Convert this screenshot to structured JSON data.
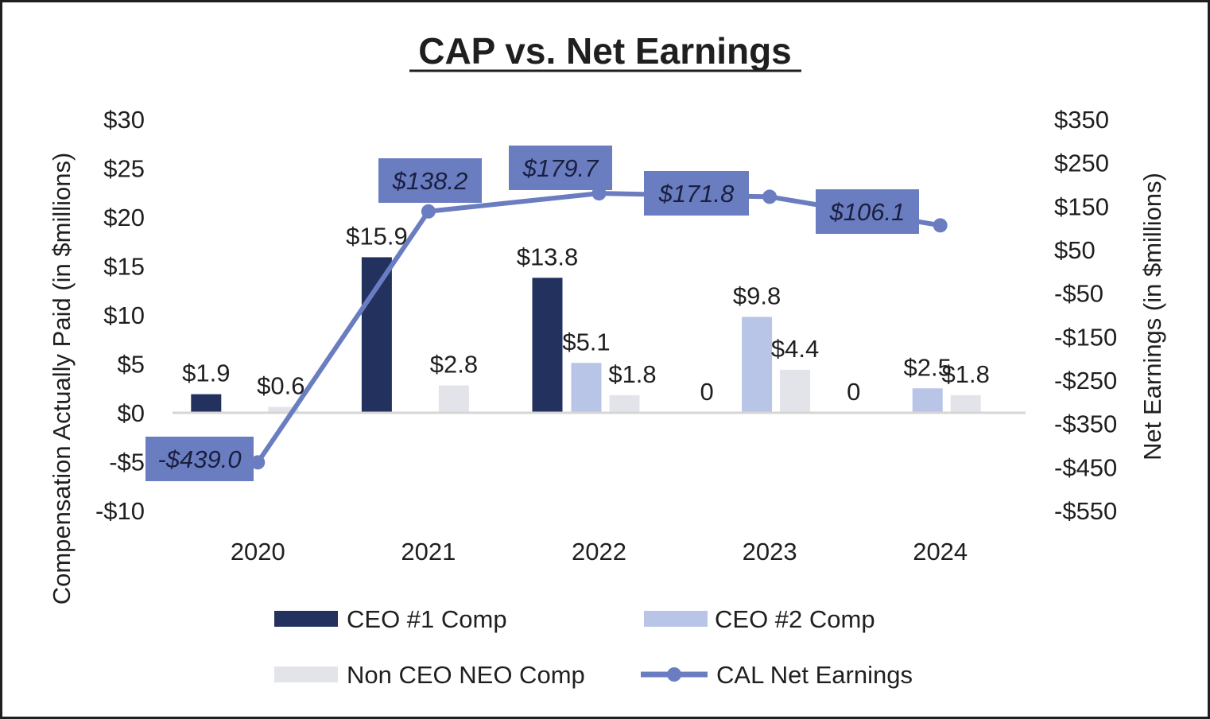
{
  "chart_data": {
    "type": "bar",
    "title": "CAP vs. Net Earnings",
    "categories": [
      "2020",
      "2021",
      "2022",
      "2023",
      "2024"
    ],
    "ylabel": "Compensation Actually Paid (in $millions)",
    "ylabel_right": "Net Earnings (in $millions)",
    "ylim": [
      -10,
      30
    ],
    "yticks": [
      30,
      25,
      20,
      15,
      10,
      5,
      0,
      -5,
      -10
    ],
    "ytick_labels": [
      "$30",
      "$25",
      "$20",
      "$15",
      "$10",
      "$5",
      "$0",
      "-$5",
      "-$10"
    ],
    "ylim_right": [
      -550,
      350
    ],
    "yticks_right": [
      350,
      250,
      150,
      50,
      -50,
      -150,
      -250,
      -350,
      -450,
      -550
    ],
    "ytick_labels_right": [
      "$350",
      "$250",
      "$150",
      "$50",
      "-$50",
      "-$150",
      "-$250",
      "-$350",
      "-$450",
      "-$550"
    ],
    "series": [
      {
        "name": "CEO #1 Comp",
        "type": "bar",
        "color": "#23315f",
        "values": [
          1.9,
          15.9,
          13.8,
          0,
          0
        ],
        "labels": [
          "$1.9",
          "$15.9",
          "$13.8",
          "0",
          "0"
        ]
      },
      {
        "name": "CEO #2 Comp",
        "type": "bar",
        "color": "#b9c5e6",
        "values": [
          null,
          null,
          5.1,
          9.8,
          2.5
        ],
        "labels": [
          null,
          null,
          "$5.1",
          "$9.8",
          "$2.5"
        ]
      },
      {
        "name": "Non CEO NEO Comp",
        "type": "bar",
        "color": "#e3e4ea",
        "values": [
          0.6,
          2.8,
          1.8,
          4.4,
          1.8
        ],
        "labels": [
          "$0.6",
          "$2.8",
          "$1.8",
          "$4.4",
          "$1.8"
        ]
      },
      {
        "name": "CAL Net Earnings",
        "type": "line",
        "axis": "right",
        "color": "#6b7dc1",
        "values": [
          -439.0,
          138.2,
          179.7,
          171.8,
          106.1
        ],
        "labels": [
          "-$439.0",
          "$138.2",
          "$179.7",
          "$171.8",
          "$106.1"
        ]
      }
    ],
    "legend": {
      "placement": "bottom",
      "items": [
        "CEO #1 Comp",
        "CEO #2 Comp",
        "Non CEO NEO Comp",
        "CAL Net Earnings"
      ]
    }
  }
}
